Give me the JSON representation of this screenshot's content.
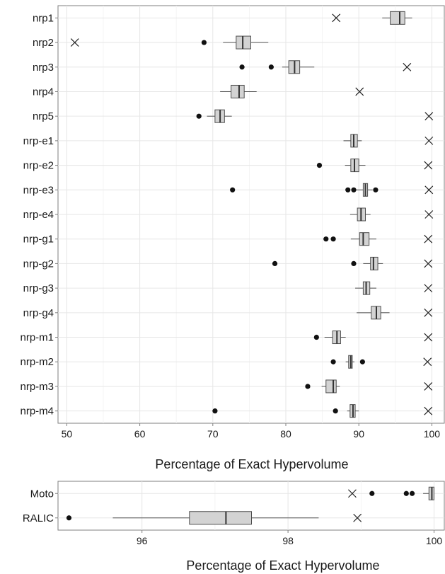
{
  "chart_data": [
    {
      "type": "box",
      "xlabel": "Percentage of Exact Hypervolume",
      "ylabel": "",
      "xlim": [
        48.8,
        101.8
      ],
      "xticks": [
        "50",
        "60",
        "70",
        "80",
        "90",
        "100"
      ],
      "grid": true,
      "categories": [
        "nrp1",
        "nrp2",
        "nrp3",
        "nrp4",
        "nrp5",
        "nrp-e1",
        "nrp-e2",
        "nrp-e3",
        "nrp-e4",
        "nrp-g1",
        "nrp-g2",
        "nrp-g3",
        "nrp-g4",
        "nrp-m1",
        "nrp-m2",
        "nrp-m3",
        "nrp-m4"
      ],
      "boxes": [
        {
          "label": "nrp1",
          "min": 93.2,
          "q1": 94.3,
          "median": 95.6,
          "q3": 96.3,
          "max": 97.3,
          "outliers": [],
          "marker": 86.9
        },
        {
          "label": "nrp2",
          "min": 71.4,
          "q1": 73.2,
          "median": 74.1,
          "q3": 75.2,
          "max": 77.6,
          "outliers": [
            68.8
          ],
          "marker": 51.1
        },
        {
          "label": "nrp3",
          "min": 79.5,
          "q1": 80.4,
          "median": 81.2,
          "q3": 81.9,
          "max": 83.9,
          "outliers": [
            74.0,
            78.0
          ],
          "marker": 96.6
        },
        {
          "label": "nrp4",
          "min": 71.0,
          "q1": 72.5,
          "median": 73.6,
          "q3": 74.3,
          "max": 76.0,
          "outliers": [],
          "marker": 90.1
        },
        {
          "label": "nrp5",
          "min": 69.2,
          "q1": 70.3,
          "median": 71.0,
          "q3": 71.6,
          "max": 72.6,
          "outliers": [
            68.1
          ],
          "marker": 99.6
        },
        {
          "label": "nrp-e1",
          "min": 87.9,
          "q1": 88.9,
          "median": 89.3,
          "q3": 89.8,
          "max": 90.4,
          "outliers": [],
          "marker": 99.6
        },
        {
          "label": "nrp-e2",
          "min": 88.1,
          "q1": 88.9,
          "median": 89.4,
          "q3": 90.0,
          "max": 90.9,
          "outliers": [
            84.6
          ],
          "marker": 99.5
        },
        {
          "label": "nrp-e3",
          "min": 89.6,
          "q1": 90.6,
          "median": 90.9,
          "q3": 91.2,
          "max": 91.9,
          "outliers": [
            72.7,
            88.5,
            89.3,
            92.3
          ],
          "marker": 99.6
        },
        {
          "label": "nrp-e4",
          "min": 88.8,
          "q1": 89.8,
          "median": 90.3,
          "q3": 90.9,
          "max": 91.6,
          "outliers": [],
          "marker": 99.6
        },
        {
          "label": "nrp-g1",
          "min": 88.9,
          "q1": 90.1,
          "median": 90.6,
          "q3": 91.4,
          "max": 92.4,
          "outliers": [
            85.5,
            86.5
          ],
          "marker": 99.5
        },
        {
          "label": "nrp-g2",
          "min": 90.6,
          "q1": 91.6,
          "median": 92.0,
          "q3": 92.6,
          "max": 93.3,
          "outliers": [
            78.5,
            89.3
          ],
          "marker": 99.5
        },
        {
          "label": "nrp-g3",
          "min": 89.5,
          "q1": 90.6,
          "median": 91.0,
          "q3": 91.5,
          "max": 92.4,
          "outliers": [],
          "marker": 99.5
        },
        {
          "label": "nrp-g4",
          "min": 89.7,
          "q1": 91.7,
          "median": 92.4,
          "q3": 93.0,
          "max": 94.2,
          "outliers": [],
          "marker": 99.5
        },
        {
          "label": "nrp-m1",
          "min": 85.3,
          "q1": 86.4,
          "median": 87.0,
          "q3": 87.5,
          "max": 88.2,
          "outliers": [
            84.2
          ],
          "marker": 99.5
        },
        {
          "label": "nrp-m2",
          "min": 88.2,
          "q1": 88.6,
          "median": 88.9,
          "q3": 89.1,
          "max": 89.4,
          "outliers": [
            86.5,
            90.5
          ],
          "marker": 99.4
        },
        {
          "label": "nrp-m3",
          "min": 84.9,
          "q1": 85.5,
          "median": 86.5,
          "q3": 86.9,
          "max": 87.4,
          "outliers": [
            83.0
          ],
          "marker": 99.5
        },
        {
          "label": "nrp-m4",
          "min": 88.4,
          "q1": 88.8,
          "median": 89.2,
          "q3": 89.5,
          "max": 90.0,
          "outliers": [
            70.3,
            86.8
          ],
          "marker": 99.5
        }
      ]
    },
    {
      "type": "box",
      "xlabel": "Percentage of Exact Hypervolume",
      "ylabel": "",
      "xlim": [
        94.85,
        100.15
      ],
      "xticks": [
        "96",
        "98",
        "100"
      ],
      "grid": true,
      "categories": [
        "Moto",
        "RALIC"
      ],
      "boxes": [
        {
          "label": "Moto",
          "min": 99.85,
          "q1": 99.93,
          "median": 99.97,
          "q3": 100.0,
          "max": 100.0,
          "outliers": [
            99.15,
            99.62,
            99.7
          ],
          "marker": 98.88
        },
        {
          "label": "RALIC",
          "min": 95.6,
          "q1": 96.65,
          "median": 97.15,
          "q3": 97.5,
          "max": 98.42,
          "outliers": [
            95.0
          ],
          "marker": 98.95
        }
      ]
    }
  ]
}
